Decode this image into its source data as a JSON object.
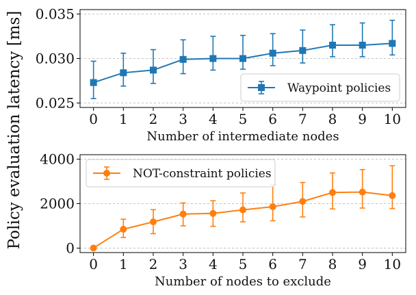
{
  "figure": {
    "shared_ylabel": "Policy evaluation latency [ms]"
  },
  "chart_data": [
    {
      "type": "line",
      "xlabel": "Number of intermediate nodes",
      "ylabel": "Policy evaluation latency [ms]",
      "x": [
        0,
        1,
        2,
        3,
        4,
        5,
        6,
        7,
        8,
        9,
        10
      ],
      "xlim": [
        -0.45,
        10.45
      ],
      "ylim": [
        0.0245,
        0.0355
      ],
      "yticks": [
        0.025,
        0.03,
        0.035
      ],
      "ytick_labels": [
        "0.025",
        "0.030",
        "0.035"
      ],
      "grid": true,
      "legend_position": "lower-right",
      "series": [
        {
          "name": "Waypoint policies",
          "color": "#1f77b4",
          "marker": "square",
          "values": [
            0.0273,
            0.0284,
            0.0287,
            0.0299,
            0.03,
            0.03,
            0.0306,
            0.0309,
            0.0315,
            0.0315,
            0.0317
          ],
          "err_low": [
            0.0255,
            0.0269,
            0.0272,
            0.0283,
            0.0287,
            0.0288,
            0.0292,
            0.0295,
            0.0302,
            0.0302,
            0.0304
          ],
          "err_high": [
            0.0297,
            0.0306,
            0.031,
            0.0321,
            0.0325,
            0.0326,
            0.0328,
            0.0332,
            0.0338,
            0.034,
            0.0343
          ]
        }
      ]
    },
    {
      "type": "line",
      "xlabel": "Number of nodes to exclude",
      "ylabel": "Policy evaluation latency [ms]",
      "x": [
        0,
        1,
        2,
        3,
        4,
        5,
        6,
        7,
        8,
        9,
        10
      ],
      "xlim": [
        -0.45,
        10.45
      ],
      "ylim": [
        -200,
        4200
      ],
      "yticks": [
        0,
        2000,
        4000
      ],
      "ytick_labels": [
        "0",
        "2000",
        "4000"
      ],
      "grid": true,
      "legend_position": "top-left",
      "series": [
        {
          "name": "NOT-constraint policies",
          "color": "#ff7f0e",
          "marker": "circle",
          "values": [
            5,
            850,
            1180,
            1530,
            1560,
            1720,
            1860,
            2100,
            2500,
            2520,
            2360
          ],
          "err_low": [
            0,
            480,
            650,
            1000,
            980,
            1180,
            1230,
            1400,
            1760,
            1800,
            1780
          ],
          "err_high": [
            0,
            1300,
            1730,
            2030,
            2130,
            2480,
            2860,
            2950,
            3380,
            3530,
            3700
          ]
        }
      ]
    }
  ]
}
